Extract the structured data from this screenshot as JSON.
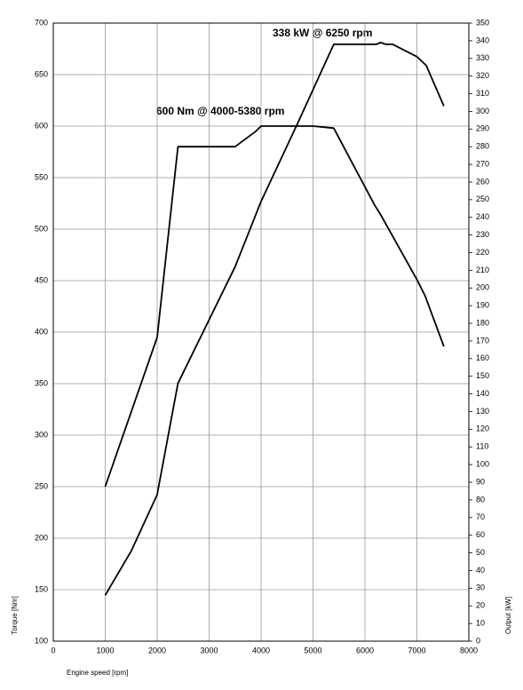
{
  "chart_data": {
    "type": "line",
    "xlabel": "Engine speed [rpm]",
    "ylabel": "Torque [Nm]",
    "y2label": "Output [kW]",
    "annotations": [
      "338 kW @ 6250 rpm",
      "600 Nm @ 4000-5380 rpm"
    ],
    "xlim": [
      0,
      8000
    ],
    "xticks": [
      0,
      1000,
      2000,
      3000,
      4000,
      5000,
      6000,
      7000,
      8000
    ],
    "ylim": [
      100,
      700
    ],
    "yticks": [
      100,
      150,
      200,
      250,
      300,
      350,
      400,
      450,
      500,
      550,
      600,
      650,
      700
    ],
    "y2lim": [
      0,
      350
    ],
    "y2ticks": [
      0,
      10,
      20,
      30,
      40,
      50,
      60,
      70,
      80,
      90,
      100,
      110,
      120,
      130,
      140,
      150,
      160,
      170,
      180,
      190,
      200,
      210,
      220,
      230,
      240,
      250,
      260,
      270,
      280,
      290,
      300,
      310,
      320,
      330,
      340,
      350
    ],
    "grid": true,
    "series": [
      {
        "name": "Torque",
        "color": "#000000",
        "x": [
          1000,
          2000,
          2400,
          3500,
          3900,
          4000,
          5000,
          5400,
          5800,
          6190,
          6290,
          6380,
          7000,
          7160,
          7520
        ],
        "values": [
          250,
          395,
          580,
          580,
          595,
          600,
          600,
          598,
          560,
          523,
          515,
          507,
          451,
          435,
          386
        ]
      },
      {
        "name": "Output",
        "color": "#000000",
        "axis": "y2",
        "x": [
          1000,
          1500,
          2000,
          2400,
          3500,
          4000,
          4700,
          5400,
          6220,
          6300,
          6400,
          6530,
          7000,
          7180,
          7520
        ],
        "values": [
          26,
          51,
          83,
          146,
          212,
          249,
          293,
          338,
          338,
          339,
          338,
          338,
          331,
          326,
          303
        ]
      }
    ]
  }
}
